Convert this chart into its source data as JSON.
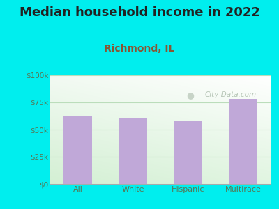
{
  "title": "Median household income in 2022",
  "subtitle": "Richmond, IL",
  "categories": [
    "All",
    "White",
    "Hispanic",
    "Multirace"
  ],
  "values": [
    62000,
    61000,
    58000,
    78000
  ],
  "bar_color": "#C0A8D8",
  "background_color": "#00EEEE",
  "ylim": [
    0,
    100000
  ],
  "yticks": [
    0,
    25000,
    50000,
    75000,
    100000
  ],
  "ytick_labels": [
    "$0",
    "$25k",
    "$50k",
    "$75k",
    "$100k"
  ],
  "title_fontsize": 13,
  "subtitle_fontsize": 10,
  "subtitle_color": "#885533",
  "title_color": "#222222",
  "tick_color": "#557755",
  "grid_color": "#bbddbb",
  "watermark": "City-Data.com",
  "watermark_color": "#aabbaa"
}
